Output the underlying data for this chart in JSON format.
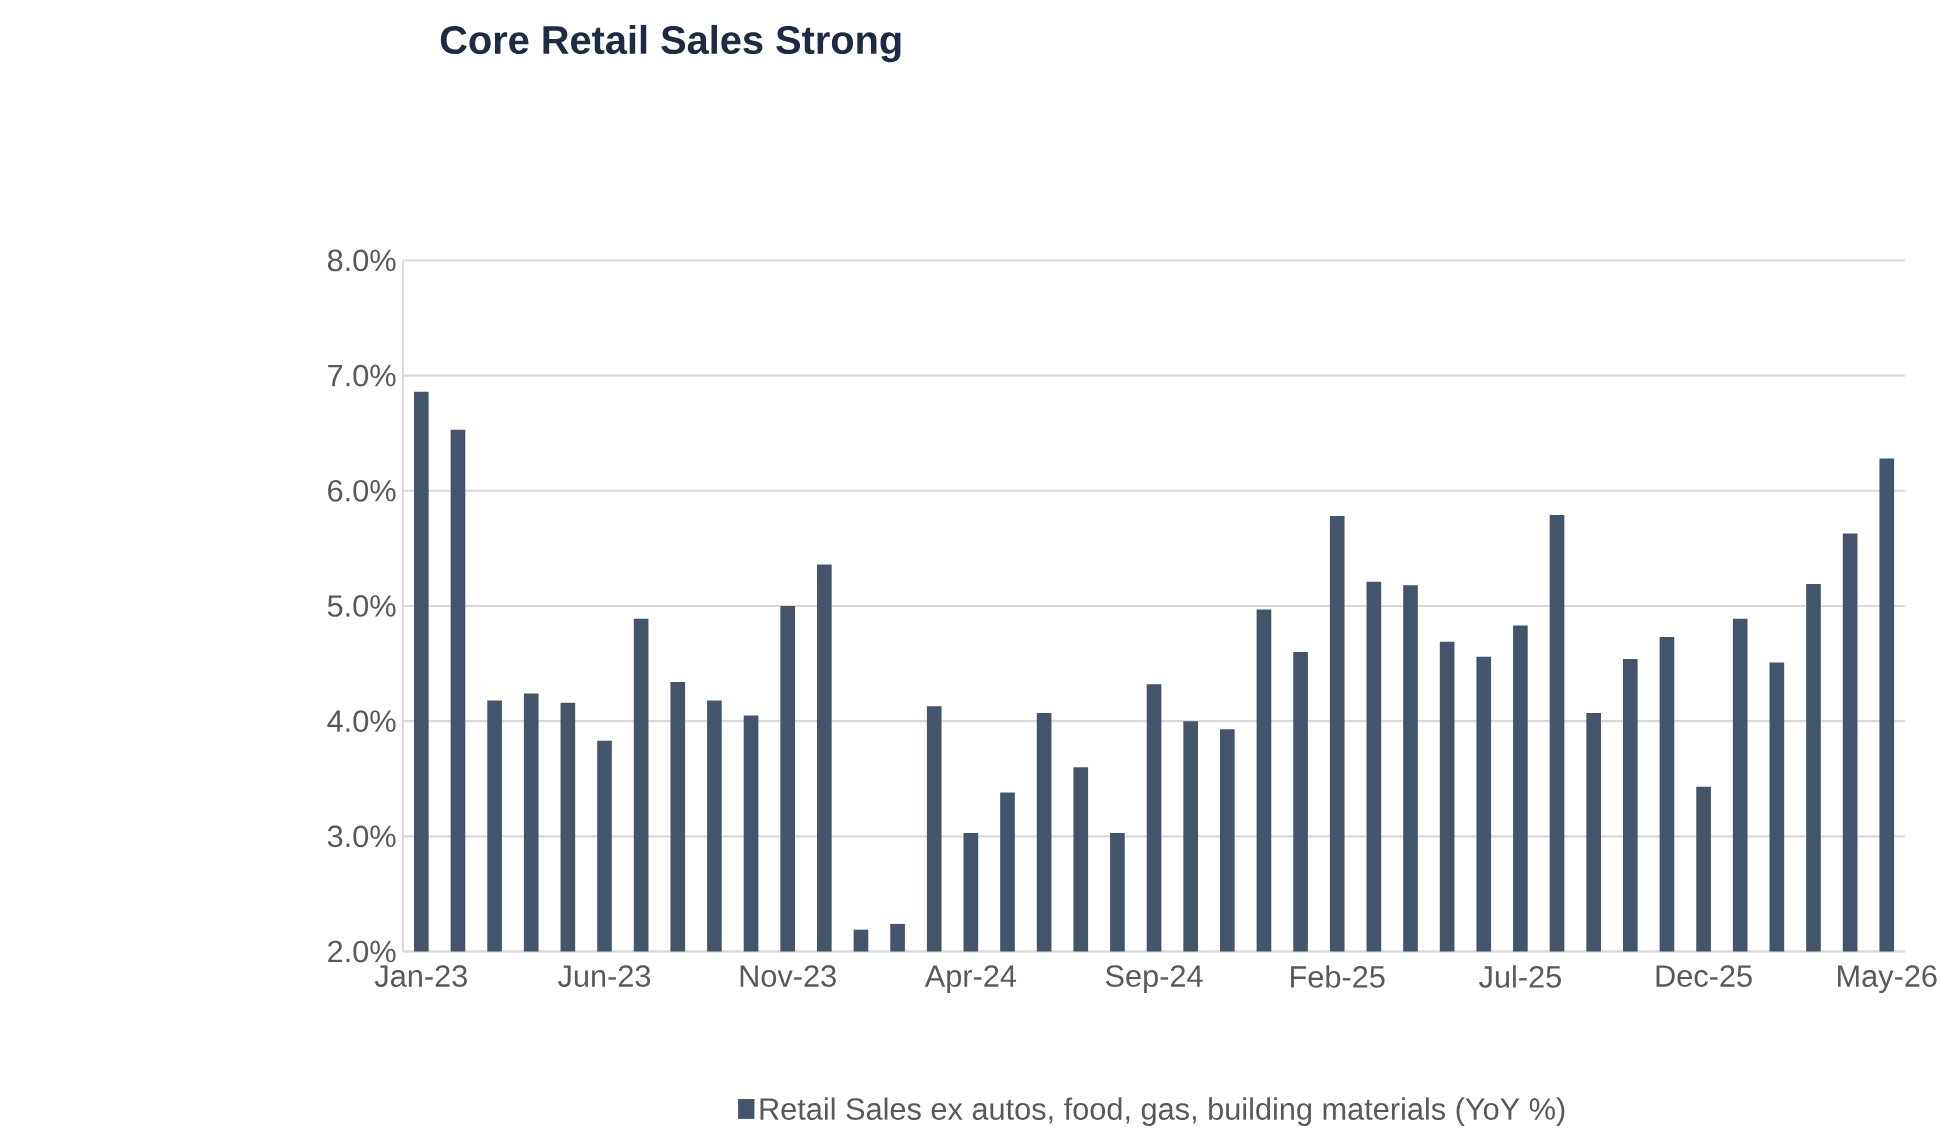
{
  "chart_data": {
    "type": "bar",
    "title": "Core Retail Sales Strong",
    "categories": [
      "Jan-23",
      null,
      null,
      null,
      null,
      "Jun-23",
      null,
      null,
      null,
      null,
      "Nov-23",
      null,
      null,
      null,
      null,
      "Apr-24",
      null,
      null,
      null,
      null,
      "Sep-24",
      null,
      null,
      null,
      null,
      "Feb-25",
      null,
      null,
      null,
      null,
      "Jul-25",
      null,
      null,
      null,
      null,
      "Dec-25",
      null,
      null,
      null,
      null,
      "May-26"
    ],
    "series": [
      {
        "name": "Retail Sales ex autos, food, gas, building materials (YoY %)",
        "color": "#44546a",
        "values": [
          6.86,
          6.53,
          4.18,
          4.24,
          4.16,
          3.83,
          4.89,
          4.34,
          4.18,
          4.05,
          5.0,
          5.36,
          2.19,
          2.24,
          4.13,
          3.03,
          3.38,
          4.07,
          3.6,
          3.03,
          4.32,
          4.0,
          3.93,
          4.97,
          4.6,
          5.78,
          5.21,
          5.18,
          4.69,
          4.56,
          4.83,
          5.79,
          4.07,
          4.54,
          4.73,
          3.43,
          4.89,
          4.51,
          5.19,
          5.63,
          6.28
        ]
      }
    ],
    "ylim": [
      2,
      8
    ],
    "yticks": [
      {
        "value": 2,
        "label": "2.0%"
      },
      {
        "value": 3,
        "label": "3.0%"
      },
      {
        "value": 4,
        "label": "4.0%"
      },
      {
        "value": 5,
        "label": "5.0%"
      },
      {
        "value": 6,
        "label": "6.0%"
      },
      {
        "value": 7,
        "label": "7.0%"
      },
      {
        "value": 8,
        "label": "8.0%"
      }
    ],
    "grid": "y",
    "legend": "bottom"
  }
}
